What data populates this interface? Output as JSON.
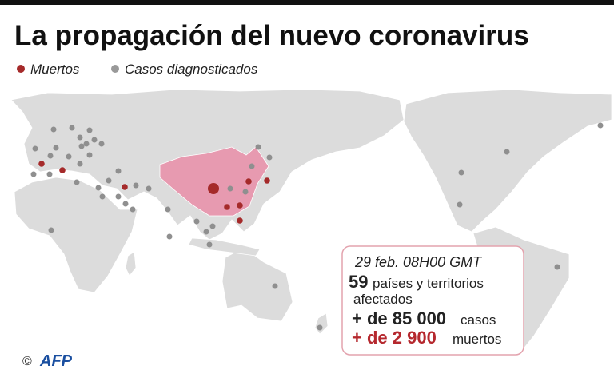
{
  "header": {
    "title": "La propagación del nuevo coronavirus"
  },
  "legend": {
    "items": [
      {
        "label": "Muertos"
      },
      {
        "label": "Casos diagnosticados"
      }
    ]
  },
  "info_box": {
    "date": "29 feb. 08H00 GMT",
    "countries_count": "59",
    "countries_text": "países y territorios",
    "countries_text_2": "afectados",
    "cases_value": "+ de 85 000",
    "cases_text": "casos",
    "deaths_value": "+ de 2 900",
    "deaths_text": "muertos"
  },
  "credit": {
    "symbol": "©",
    "agency": "AFP"
  }
}
